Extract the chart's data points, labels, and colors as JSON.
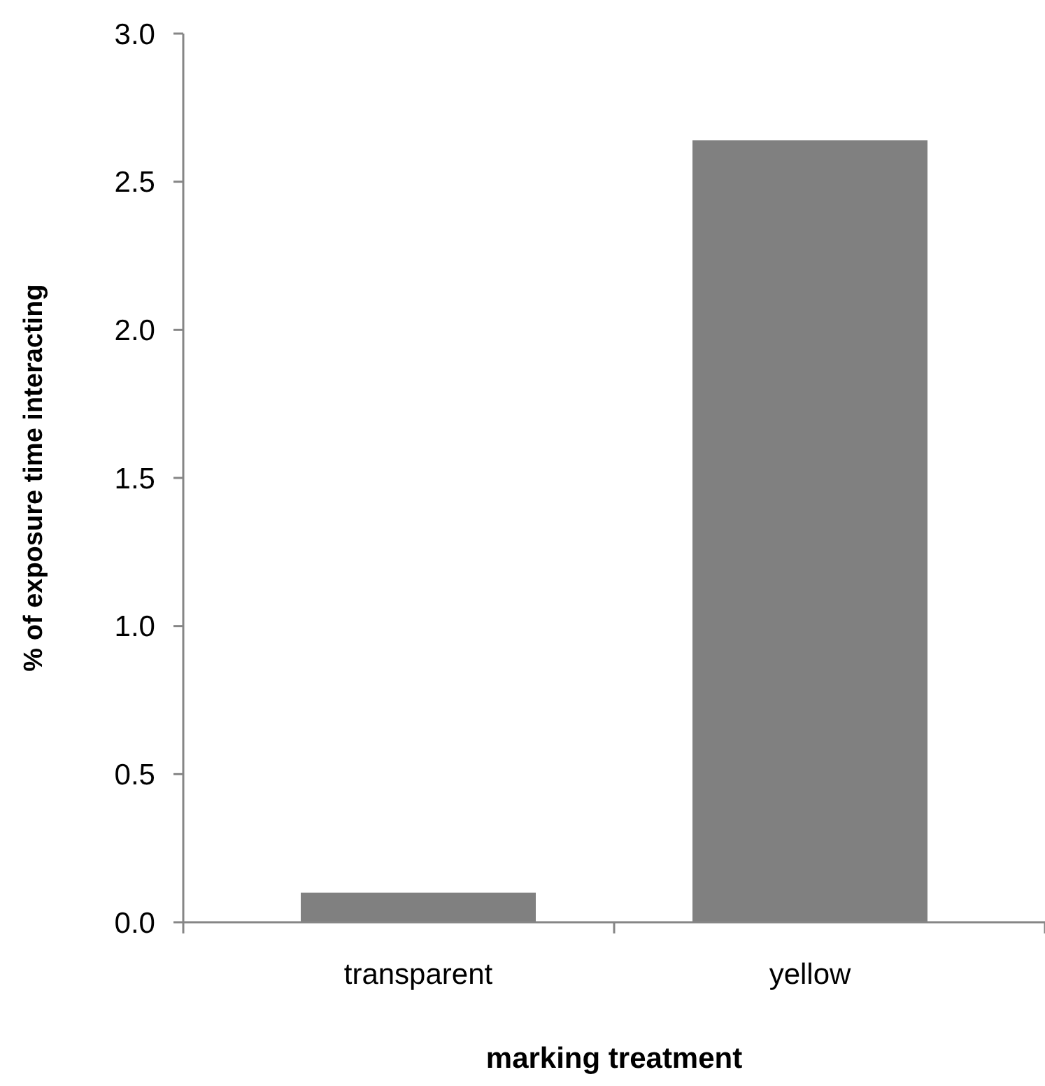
{
  "chart_data": {
    "type": "bar",
    "xlabel": "marking treatment",
    "ylabel": "% of exposure time interacting",
    "categories": [
      "transparent",
      "yellow"
    ],
    "values": [
      0.1,
      2.64
    ],
    "color": "#808080",
    "ylim": [
      0,
      3
    ],
    "yticks": [
      {
        "value": 0,
        "label": "0.0"
      },
      {
        "value": 0.5,
        "label": "0.5"
      },
      {
        "value": 1,
        "label": "1.0"
      },
      {
        "value": 1.5,
        "label": "1.5"
      },
      {
        "value": 2,
        "label": "2.0"
      },
      {
        "value": 2.5,
        "label": "2.5"
      },
      {
        "value": 3,
        "label": "3.0"
      }
    ],
    "grid": false
  }
}
